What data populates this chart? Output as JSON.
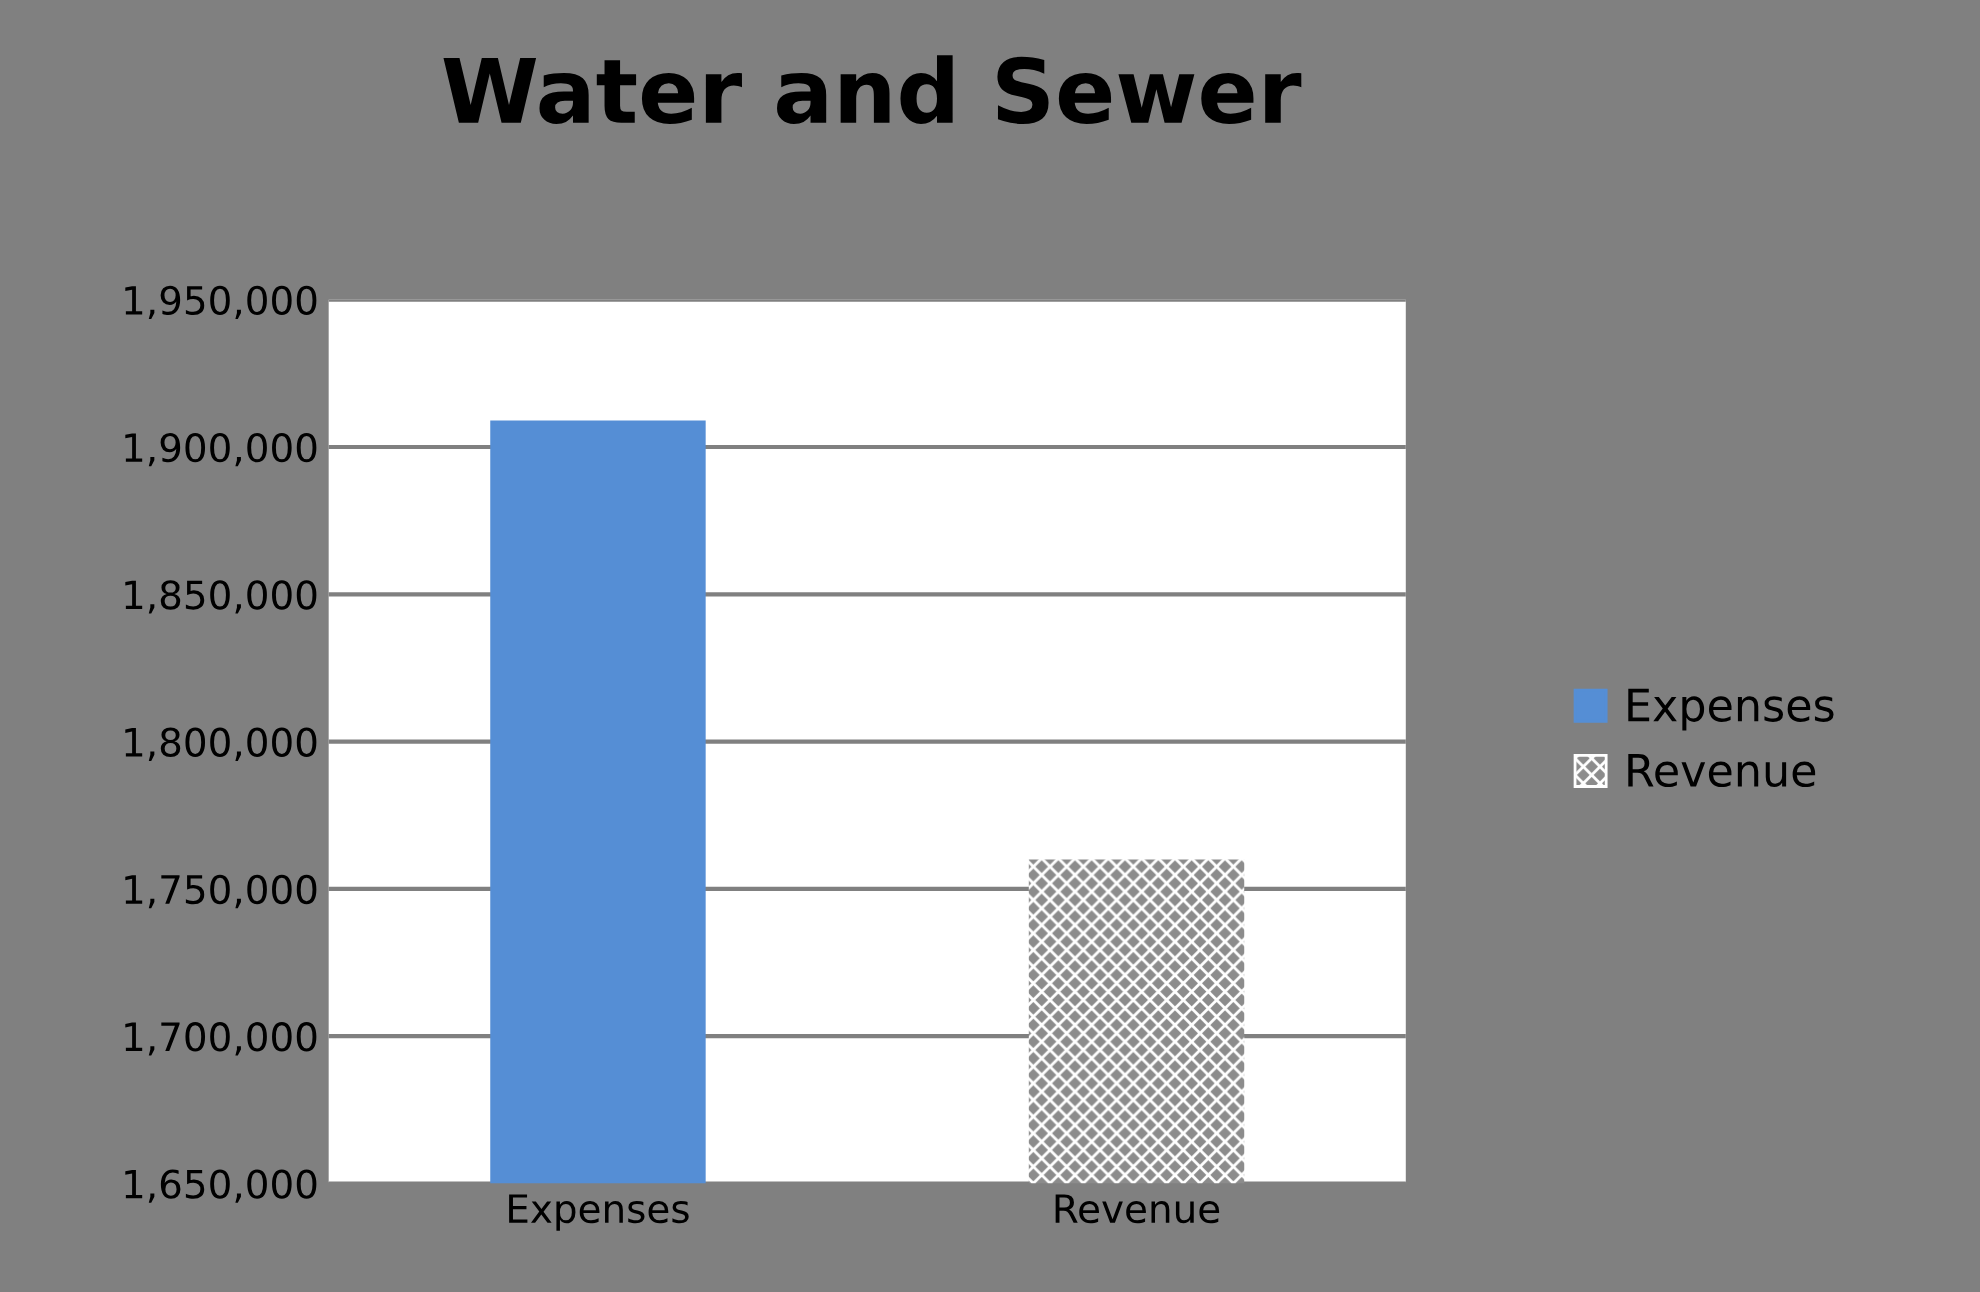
{
  "chart_data": {
    "type": "bar",
    "title": "Water and Sewer",
    "categories": [
      "Expenses",
      "Revenue"
    ],
    "series": [
      {
        "name": "Expenses",
        "color": "#558ed5",
        "values": [
          1909000,
          null
        ]
      },
      {
        "name": "Revenue",
        "color": "#8c8c8c",
        "values": [
          null,
          1760000
        ]
      }
    ],
    "ylim": [
      1650000,
      1950000
    ],
    "yticks": [
      {
        "value": 1650000,
        "label": "1,650,000"
      },
      {
        "value": 1700000,
        "label": "1,700,000"
      },
      {
        "value": 1750000,
        "label": "1,750,000"
      },
      {
        "value": 1800000,
        "label": "1,800,000"
      },
      {
        "value": 1850000,
        "label": "1,850,000"
      },
      {
        "value": 1900000,
        "label": "1,900,000"
      },
      {
        "value": 1950000,
        "label": "1,950,000"
      }
    ],
    "grid": "y",
    "legend": "right"
  }
}
